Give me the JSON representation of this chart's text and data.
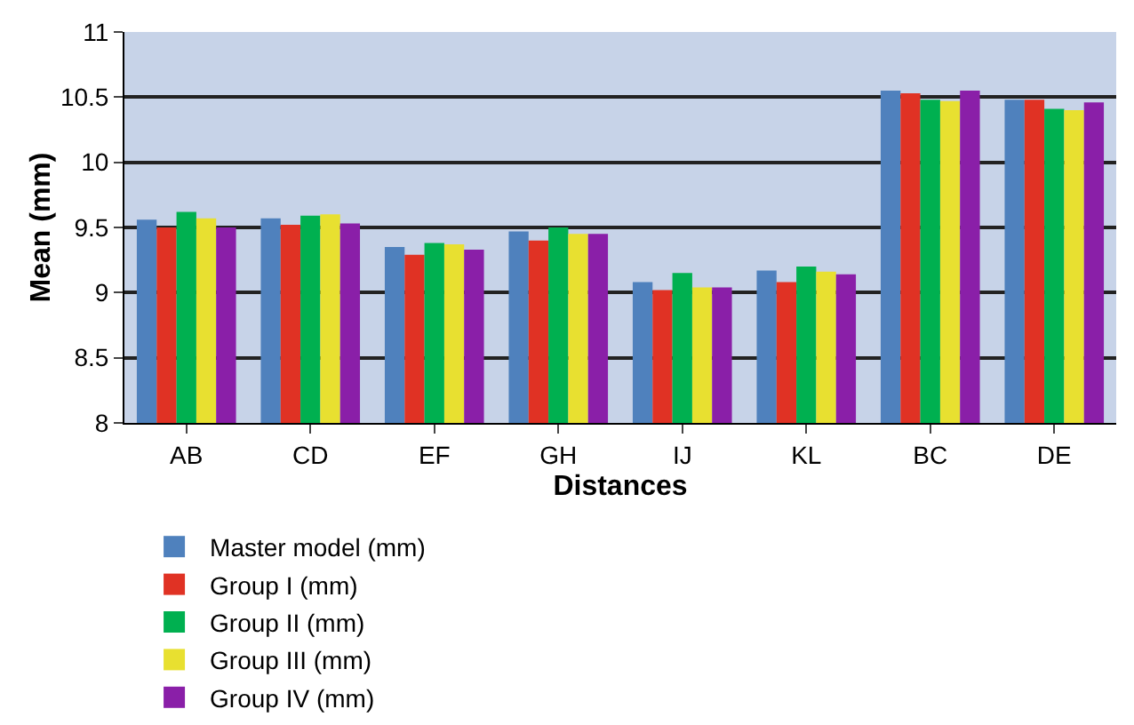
{
  "chart_data": {
    "type": "bar",
    "xlabel": "Distances",
    "ylabel": "Mean (mm)",
    "categories": [
      "AB",
      "CD",
      "EF",
      "GH",
      "IJ",
      "KL",
      "BC",
      "DE"
    ],
    "series": [
      {
        "name": "Master model (mm)",
        "color": "#4f81bd",
        "values": [
          9.56,
          9.57,
          9.35,
          9.47,
          9.08,
          9.17,
          10.55,
          10.48
        ]
      },
      {
        "name": "Group I (mm)",
        "color": "#e03224",
        "values": [
          9.5,
          9.52,
          9.29,
          9.4,
          9.02,
          9.08,
          10.53,
          10.48
        ]
      },
      {
        "name": "Group II (mm)",
        "color": "#00b050",
        "values": [
          9.62,
          9.59,
          9.38,
          9.5,
          9.15,
          9.2,
          10.48,
          10.41
        ]
      },
      {
        "name": "Group III (mm)",
        "color": "#e8e030",
        "values": [
          9.57,
          9.6,
          9.37,
          9.45,
          9.04,
          9.16,
          10.47,
          10.4
        ]
      },
      {
        "name": "Group IV (mm)",
        "color": "#8a1fa8",
        "values": [
          9.5,
          9.53,
          9.33,
          9.45,
          9.04,
          9.14,
          10.55,
          10.46
        ]
      }
    ],
    "ylim": [
      8,
      11
    ],
    "yticks": [
      8,
      8.5,
      9,
      9.5,
      10,
      10.5,
      11
    ],
    "grid": "y",
    "legend": "bottom"
  }
}
